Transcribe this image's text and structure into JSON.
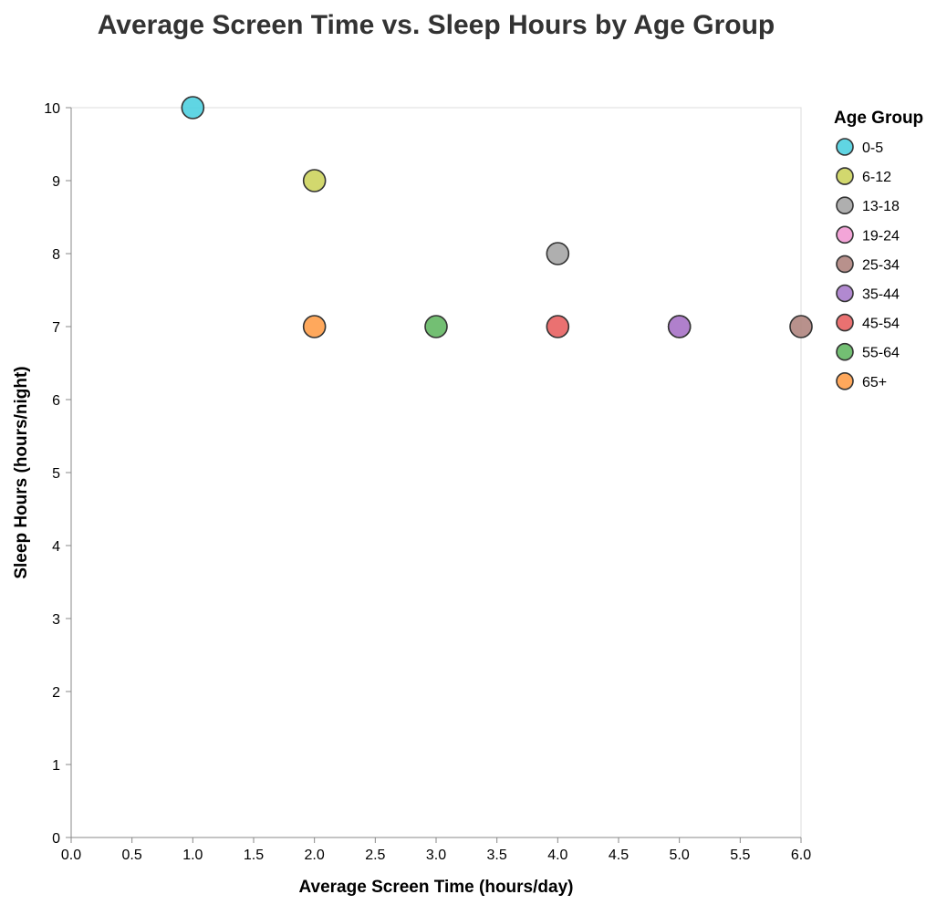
{
  "chart_data": {
    "type": "scatter",
    "title": "Average Screen Time vs. Sleep Hours by Age Group",
    "xlabel": "Average Screen Time (hours/day)",
    "ylabel": "Sleep Hours (hours/night)",
    "xlim": [
      0,
      6
    ],
    "ylim": [
      0,
      10
    ],
    "x_ticks": [
      "0.0",
      "0.5",
      "1.0",
      "1.5",
      "2.0",
      "2.5",
      "3.0",
      "3.5",
      "4.0",
      "4.5",
      "5.0",
      "5.5",
      "6.0"
    ],
    "y_ticks": [
      "0",
      "1",
      "2",
      "3",
      "4",
      "5",
      "6",
      "7",
      "8",
      "9",
      "10"
    ],
    "grid": false,
    "legend_title": "Age Group",
    "legend_position": "right",
    "series": [
      {
        "name": "0-5",
        "color": "#4FD0E0",
        "points": [
          {
            "x": 1,
            "y": 10
          }
        ]
      },
      {
        "name": "6-12",
        "color": "#CDD45E",
        "points": [
          {
            "x": 2,
            "y": 9
          }
        ]
      },
      {
        "name": "13-18",
        "color": "#A6A6A6",
        "points": [
          {
            "x": 4,
            "y": 8
          }
        ]
      },
      {
        "name": "19-24",
        "color": "#F29BD4",
        "points": [
          {
            "x": 5,
            "y": 7
          }
        ]
      },
      {
        "name": "25-34",
        "color": "#B08580",
        "points": [
          {
            "x": 6,
            "y": 7
          }
        ]
      },
      {
        "name": "35-44",
        "color": "#A97CCB",
        "points": [
          {
            "x": 5,
            "y": 7
          }
        ]
      },
      {
        "name": "45-54",
        "color": "#E86262",
        "points": [
          {
            "x": 4,
            "y": 7
          }
        ]
      },
      {
        "name": "55-64",
        "color": "#64B864",
        "points": [
          {
            "x": 3,
            "y": 7
          }
        ]
      },
      {
        "name": "65+",
        "color": "#FF9E4A",
        "points": [
          {
            "x": 2,
            "y": 7
          }
        ]
      }
    ]
  }
}
